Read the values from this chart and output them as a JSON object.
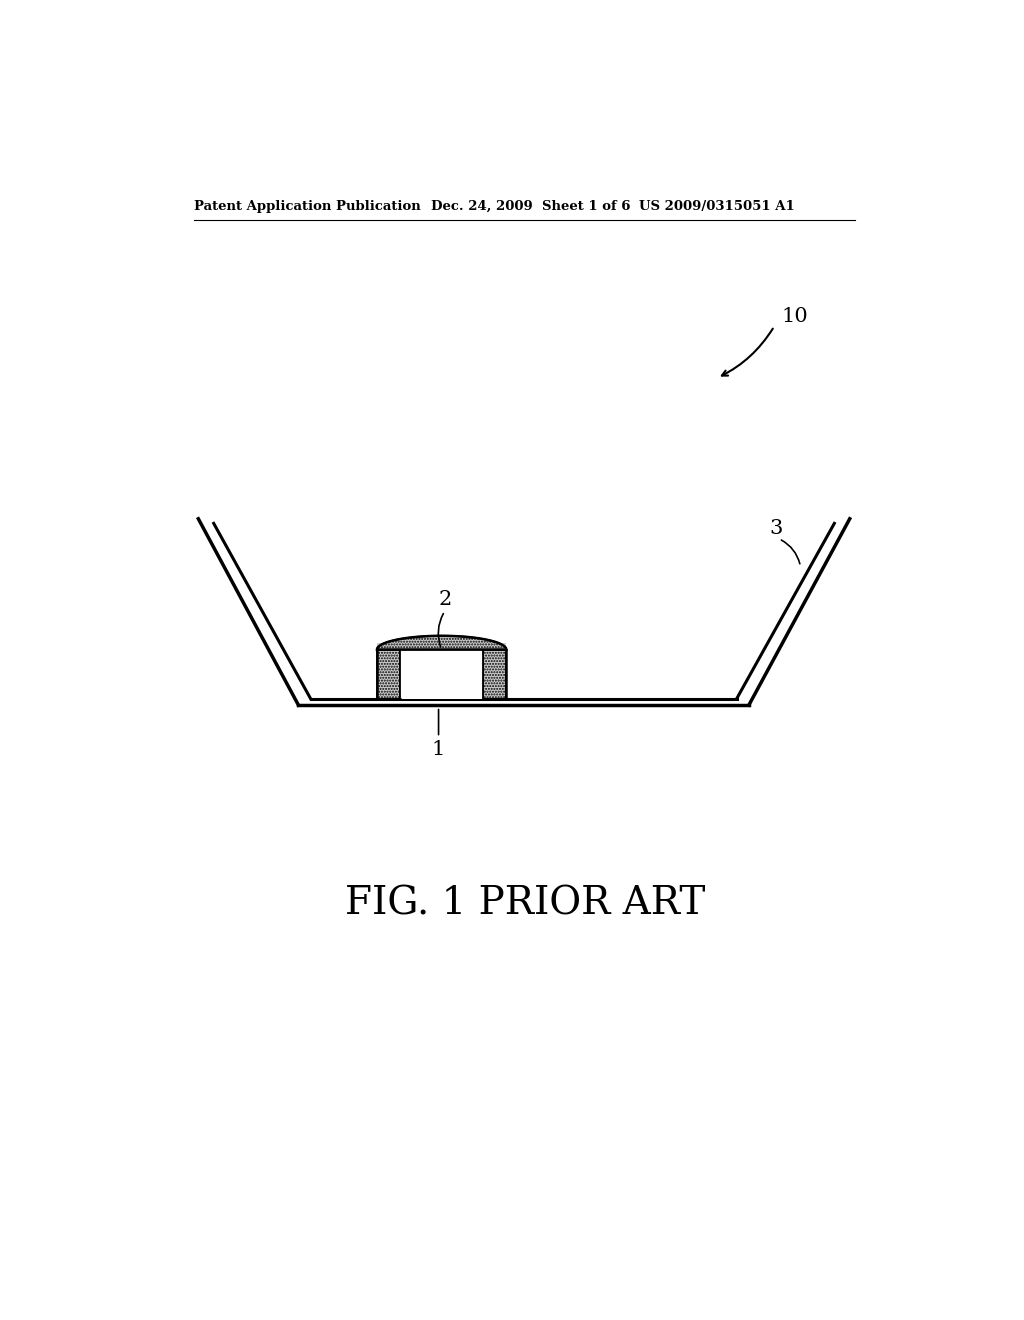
{
  "background_color": "#ffffff",
  "header_left": "Patent Application Publication",
  "header_mid": "Dec. 24, 2009  Sheet 1 of 6",
  "header_right": "US 2009/0315051 A1",
  "figure_label": "FIG. 1 PRIOR ART",
  "label_10": "10",
  "label_2": "2",
  "label_3": "3",
  "label_1": "1",
  "line_color": "#000000",
  "line_width": 2.2,
  "fig_label_fontsize": 28,
  "header_fontsize": 9.5,
  "annot_fontsize": 15
}
